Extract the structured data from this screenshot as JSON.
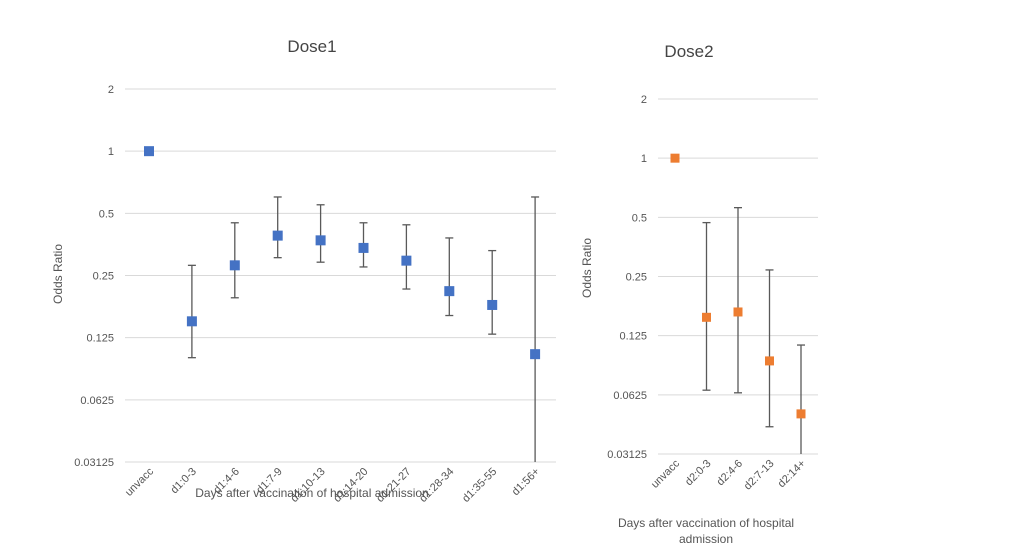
{
  "chart_data": [
    {
      "type": "scatter",
      "title": "Dose1",
      "xlabel": "Days after vaccination of hospital admission",
      "ylabel": "Odds Ratio",
      "yscale": "log2",
      "ylim": [
        0.03125,
        2
      ],
      "yticks": [
        "2",
        "1",
        "0.5",
        "0.25",
        "0.125",
        "0.0625",
        "0.03125"
      ],
      "color": "#4472c4",
      "categories": [
        "unvacc",
        "d1:0-3",
        "d1:4-6",
        "d1:7-9",
        "d1:10-13",
        "d1:14-20",
        "d1:21-27",
        "d1:28-34",
        "d1:35-55",
        "d1:56+"
      ],
      "values": [
        1,
        0.15,
        0.28,
        0.39,
        0.37,
        0.34,
        0.295,
        0.21,
        0.18,
        0.104
      ],
      "error_low": [
        null,
        0.1,
        0.195,
        0.305,
        0.29,
        0.275,
        0.215,
        0.16,
        0.13,
        0.03125
      ],
      "error_high": [
        null,
        0.28,
        0.45,
        0.6,
        0.55,
        0.45,
        0.44,
        0.38,
        0.33,
        0.6
      ]
    },
    {
      "type": "scatter",
      "title": "Dose2",
      "xlabel": "Days after vaccination of hospital admission",
      "ylabel": "Odds Ratio",
      "yscale": "log2",
      "ylim": [
        0.03125,
        2
      ],
      "yticks": [
        "2",
        "1",
        "0.5",
        "0.25",
        "0.125",
        "0.0625",
        "0.03125"
      ],
      "color": "#ed7d31",
      "categories": [
        "unvacc",
        "d2:0-3",
        "d2:4-6",
        "d2:7-13",
        "d2:14+"
      ],
      "values": [
        1,
        0.155,
        0.165,
        0.093,
        0.05
      ],
      "error_low": [
        null,
        0.066,
        0.064,
        0.043,
        0.03125
      ],
      "error_high": [
        null,
        0.47,
        0.56,
        0.27,
        0.112
      ]
    }
  ]
}
